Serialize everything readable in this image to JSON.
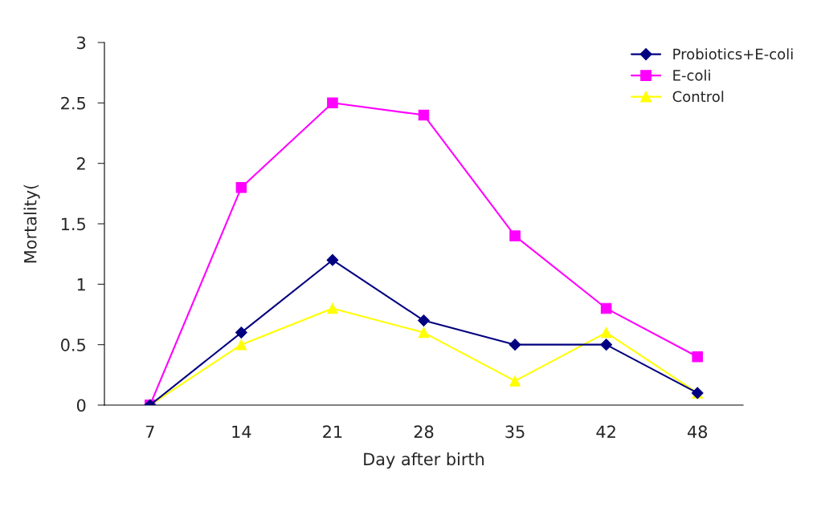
{
  "chart_data": {
    "type": "line",
    "xlabel": "Day after birth",
    "ylabel": "Mortality(",
    "categories": [
      "7",
      "14",
      "21",
      "28",
      "35",
      "42",
      "48"
    ],
    "series": [
      {
        "name": "Probiotics+E-coli",
        "color": "#000080",
        "marker": "diamond",
        "values": [
          0,
          0.6,
          1.2,
          0.7,
          0.5,
          0.5,
          0.1
        ]
      },
      {
        "name": "E-coli",
        "color": "#ff00ff",
        "marker": "square",
        "values": [
          0,
          1.8,
          2.5,
          2.4,
          1.4,
          0.8,
          0.4
        ]
      },
      {
        "name": "Control",
        "color": "#ffff00",
        "marker": "triangle",
        "values": [
          0,
          0.5,
          0.8,
          0.6,
          0.2,
          0.6,
          0.1
        ]
      }
    ],
    "ylim": [
      0,
      3
    ],
    "yticks": [
      0,
      0.5,
      1,
      1.5,
      2,
      2.5,
      3
    ],
    "grid": false,
    "legend": "top right",
    "line_style": "solid"
  }
}
